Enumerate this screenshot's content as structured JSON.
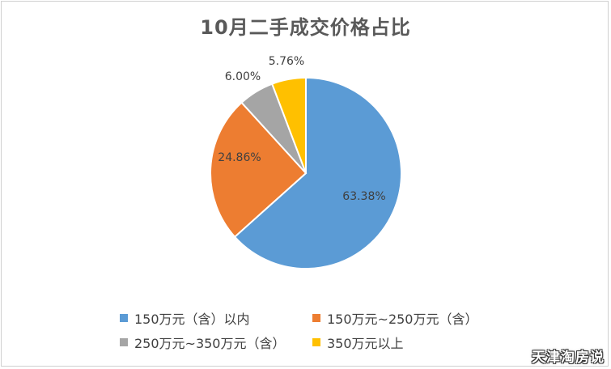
{
  "chart_data": {
    "type": "pie",
    "title": "10月二手成交价格占比",
    "categories": [
      "150万元（含）以内",
      "150万元~250万元（含）",
      "250万元~350万元（含）",
      "350万元以上"
    ],
    "values": [
      63.38,
      24.86,
      6.0,
      5.76
    ],
    "data_labels": [
      "63.38%",
      "24.86%",
      "6.00%",
      "5.76%"
    ],
    "colors": [
      "#5b9bd5",
      "#ed7d31",
      "#a5a5a5",
      "#ffc000"
    ],
    "start_angle_deg": 0,
    "direction": "clockwise",
    "legend_position": "bottom"
  },
  "watermark": "天津淘房说"
}
